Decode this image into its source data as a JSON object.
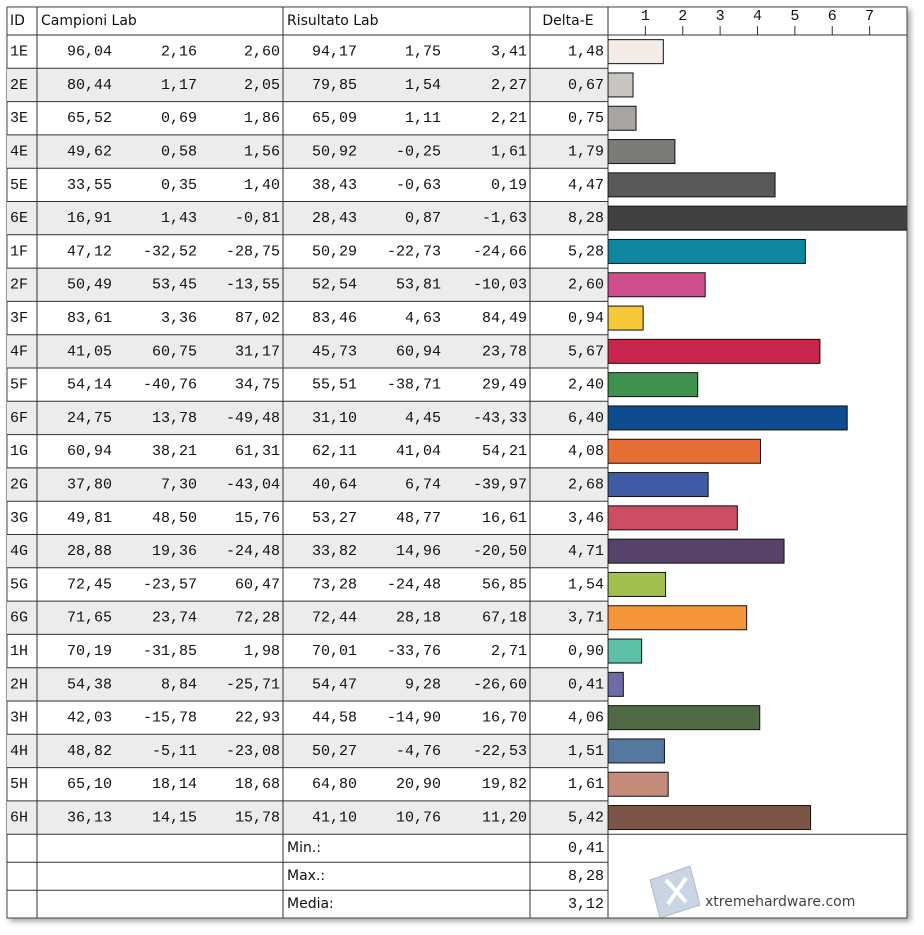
{
  "header": {
    "id": "ID",
    "sample": "Campioni Lab",
    "result": "Risultato Lab",
    "delta": "Delta-E"
  },
  "axis": {
    "xlim": [
      0,
      8
    ],
    "xticks": [
      1,
      2,
      3,
      4,
      5,
      6,
      7
    ]
  },
  "rows": [
    {
      "id": "1E",
      "sample": [
        "96,04",
        "2,16",
        "2,60"
      ],
      "result": [
        "94,17",
        "1,75",
        "3,41"
      ],
      "delta": {
        "value": 1.48,
        "label": "1,48"
      },
      "color": "#f3ebe6"
    },
    {
      "id": "2E",
      "sample": [
        "80,44",
        "1,17",
        "2,05"
      ],
      "result": [
        "79,85",
        "1,54",
        "2,27"
      ],
      "delta": {
        "value": 0.67,
        "label": "0,67"
      },
      "color": "#c8c4c0"
    },
    {
      "id": "3E",
      "sample": [
        "65,52",
        "0,69",
        "1,86"
      ],
      "result": [
        "65,09",
        "1,11",
        "2,21"
      ],
      "delta": {
        "value": 0.75,
        "label": "0,75"
      },
      "color": "#a8a4a0"
    },
    {
      "id": "4E",
      "sample": [
        "49,62",
        "0,58",
        "1,56"
      ],
      "result": [
        "50,92",
        "-0,25",
        "1,61"
      ],
      "delta": {
        "value": 1.79,
        "label": "1,79"
      },
      "color": "#7b7b77"
    },
    {
      "id": "5E",
      "sample": [
        "33,55",
        "0,35",
        "1,40"
      ],
      "result": [
        "38,43",
        "-0,63",
        "0,19"
      ],
      "delta": {
        "value": 4.47,
        "label": "4,47"
      },
      "color": "#595959"
    },
    {
      "id": "6E",
      "sample": [
        "16,91",
        "1,43",
        "-0,81"
      ],
      "result": [
        "28,43",
        "0,87",
        "-1,63"
      ],
      "delta": {
        "value": 8.28,
        "label": "8,28"
      },
      "color": "#414141"
    },
    {
      "id": "1F",
      "sample": [
        "47,12",
        "-32,52",
        "-28,75"
      ],
      "result": [
        "50,29",
        "-22,73",
        "-24,66"
      ],
      "delta": {
        "value": 5.28,
        "label": "5,28"
      },
      "color": "#1186a0"
    },
    {
      "id": "2F",
      "sample": [
        "50,49",
        "53,45",
        "-13,55"
      ],
      "result": [
        "52,54",
        "53,81",
        "-10,03"
      ],
      "delta": {
        "value": 2.6,
        "label": "2,60"
      },
      "color": "#cf4f8e"
    },
    {
      "id": "3F",
      "sample": [
        "83,61",
        "3,36",
        "87,02"
      ],
      "result": [
        "83,46",
        "4,63",
        "84,49"
      ],
      "delta": {
        "value": 0.94,
        "label": "0,94"
      },
      "color": "#f6c83a"
    },
    {
      "id": "4F",
      "sample": [
        "41,05",
        "60,75",
        "31,17"
      ],
      "result": [
        "45,73",
        "60,94",
        "23,78"
      ],
      "delta": {
        "value": 5.67,
        "label": "5,67"
      },
      "color": "#c8264a"
    },
    {
      "id": "5F",
      "sample": [
        "54,14",
        "-40,76",
        "34,75"
      ],
      "result": [
        "55,51",
        "-38,71",
        "29,49"
      ],
      "delta": {
        "value": 2.4,
        "label": "2,40"
      },
      "color": "#3f9150"
    },
    {
      "id": "6F",
      "sample": [
        "24,75",
        "13,78",
        "-49,48"
      ],
      "result": [
        "31,10",
        "4,45",
        "-43,33"
      ],
      "delta": {
        "value": 6.4,
        "label": "6,40"
      },
      "color": "#0e4b8f"
    },
    {
      "id": "1G",
      "sample": [
        "60,94",
        "38,21",
        "61,31"
      ],
      "result": [
        "62,11",
        "41,04",
        "54,21"
      ],
      "delta": {
        "value": 4.08,
        "label": "4,08"
      },
      "color": "#e66f35"
    },
    {
      "id": "2G",
      "sample": [
        "37,80",
        "7,30",
        "-43,04"
      ],
      "result": [
        "40,64",
        "6,74",
        "-39,97"
      ],
      "delta": {
        "value": 2.68,
        "label": "2,68"
      },
      "color": "#3f5ba3"
    },
    {
      "id": "3G",
      "sample": [
        "49,81",
        "48,50",
        "15,76"
      ],
      "result": [
        "53,27",
        "48,77",
        "16,61"
      ],
      "delta": {
        "value": 3.46,
        "label": "3,46"
      },
      "color": "#cc4d64"
    },
    {
      "id": "4G",
      "sample": [
        "28,88",
        "19,36",
        "-24,48"
      ],
      "result": [
        "33,82",
        "14,96",
        "-20,50"
      ],
      "delta": {
        "value": 4.71,
        "label": "4,71"
      },
      "color": "#574369"
    },
    {
      "id": "5G",
      "sample": [
        "72,45",
        "-23,57",
        "60,47"
      ],
      "result": [
        "73,28",
        "-24,48",
        "56,85"
      ],
      "delta": {
        "value": 1.54,
        "label": "1,54"
      },
      "color": "#a2c04e"
    },
    {
      "id": "6G",
      "sample": [
        "71,65",
        "23,74",
        "72,28"
      ],
      "result": [
        "72,44",
        "28,18",
        "67,18"
      ],
      "delta": {
        "value": 3.71,
        "label": "3,71"
      },
      "color": "#f5963a"
    },
    {
      "id": "1H",
      "sample": [
        "70,19",
        "-31,85",
        "1,98"
      ],
      "result": [
        "70,01",
        "-33,76",
        "2,71"
      ],
      "delta": {
        "value": 0.9,
        "label": "0,90"
      },
      "color": "#5dbfa5"
    },
    {
      "id": "2H",
      "sample": [
        "54,38",
        "8,84",
        "-25,71"
      ],
      "result": [
        "54,47",
        "9,28",
        "-26,60"
      ],
      "delta": {
        "value": 0.41,
        "label": "0,41"
      },
      "color": "#6f6aa8"
    },
    {
      "id": "3H",
      "sample": [
        "42,03",
        "-15,78",
        "22,93"
      ],
      "result": [
        "44,58",
        "-14,90",
        "16,70"
      ],
      "delta": {
        "value": 4.06,
        "label": "4,06"
      },
      "color": "#4f6b44"
    },
    {
      "id": "4H",
      "sample": [
        "48,82",
        "-5,11",
        "-23,08"
      ],
      "result": [
        "50,27",
        "-4,76",
        "-22,53"
      ],
      "delta": {
        "value": 1.51,
        "label": "1,51"
      },
      "color": "#55799e"
    },
    {
      "id": "5H",
      "sample": [
        "65,10",
        "18,14",
        "18,68"
      ],
      "result": [
        "64,80",
        "20,90",
        "19,82"
      ],
      "delta": {
        "value": 1.61,
        "label": "1,61"
      },
      "color": "#c48a7a"
    },
    {
      "id": "6H",
      "sample": [
        "36,13",
        "14,15",
        "15,78"
      ],
      "result": [
        "41,10",
        "10,76",
        "11,20"
      ],
      "delta": {
        "value": 5.42,
        "label": "5,42"
      },
      "color": "#7a5548"
    }
  ],
  "summary": [
    {
      "label": "Min.:",
      "value": "0,41"
    },
    {
      "label": "Max.:",
      "value": "8,28"
    },
    {
      "label": "Media:",
      "value": "3,12"
    }
  ],
  "watermark": "xtremehardware.com"
}
